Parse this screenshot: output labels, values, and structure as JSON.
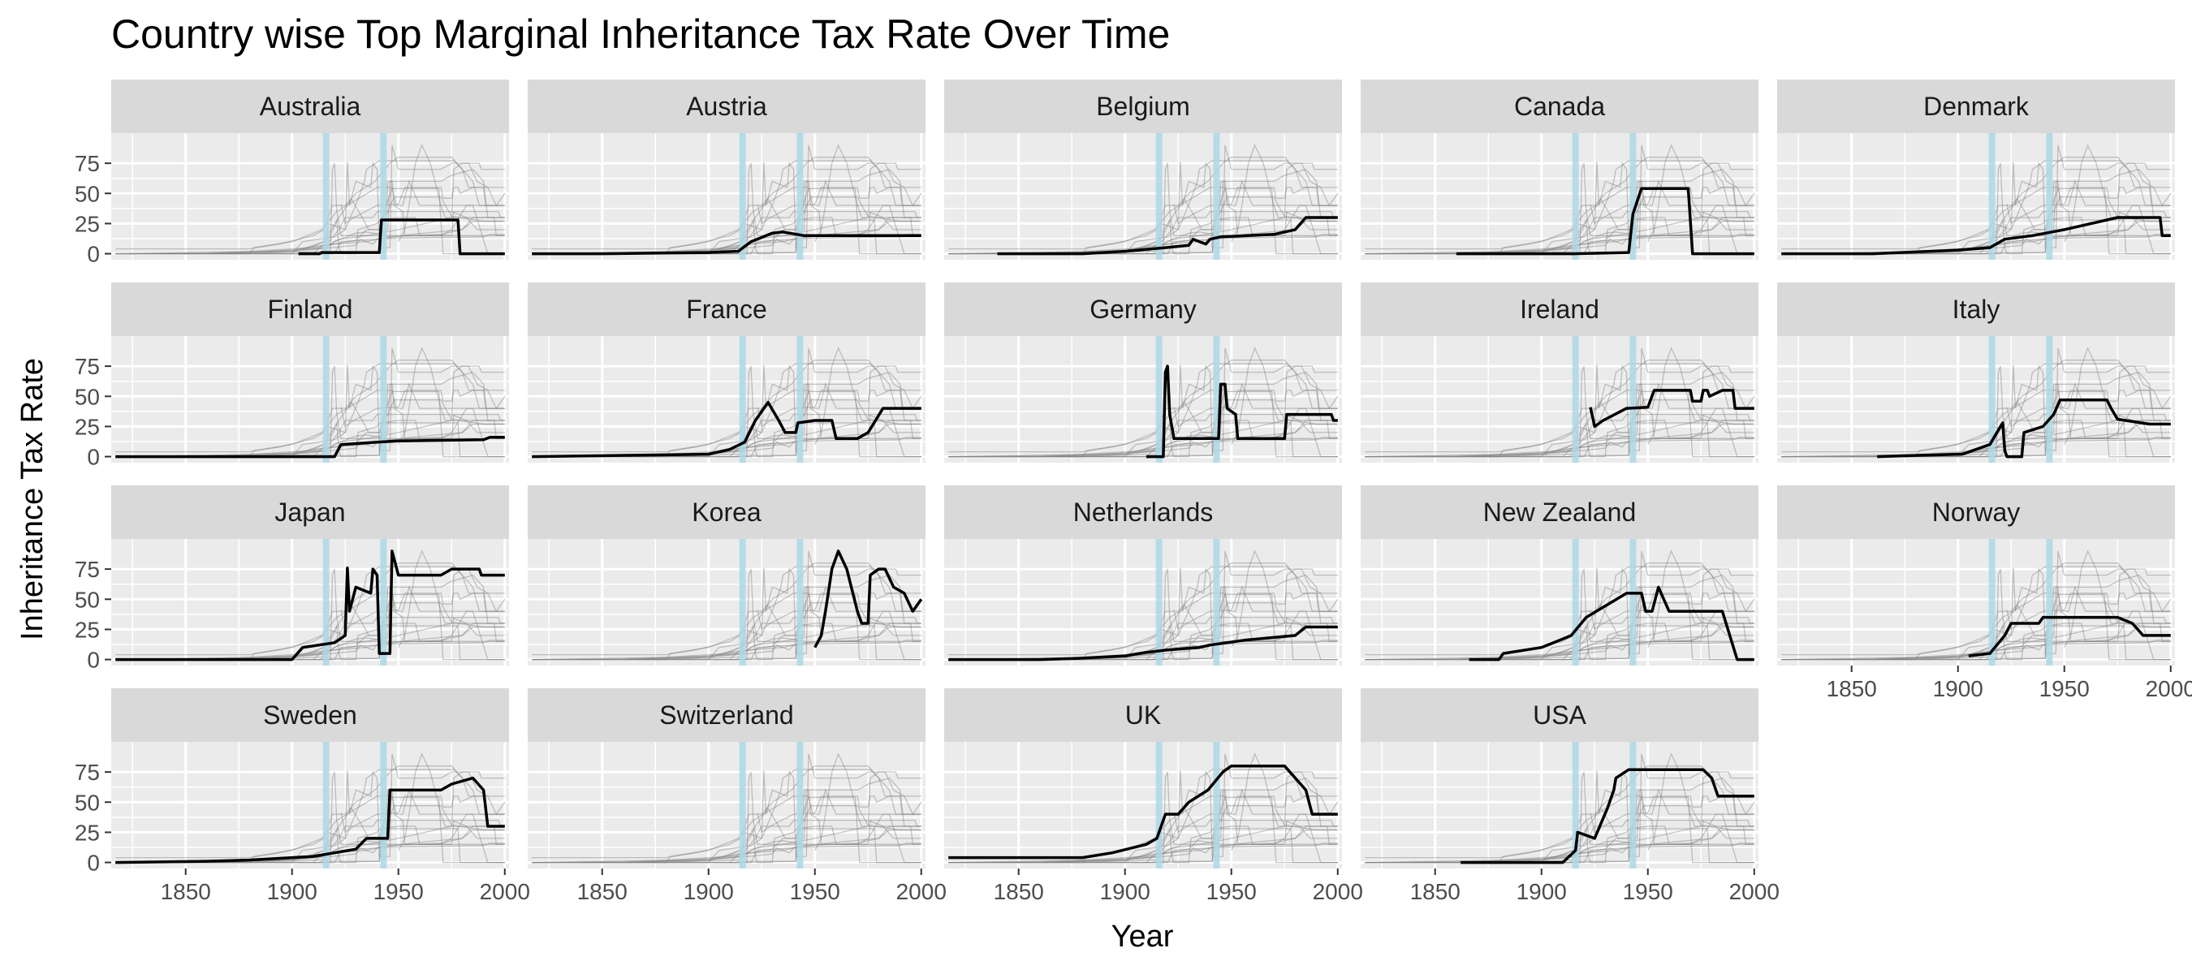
{
  "chart_data": {
    "type": "line",
    "title": "Country wise Top Marginal Inheritance Tax Rate Over Time",
    "xlabel": "Year",
    "ylabel": "Inheritance Tax Rate",
    "xlim": [
      1815,
      2002
    ],
    "ylim": [
      -5,
      100
    ],
    "x_ticks": [
      1850,
      1900,
      1950,
      2000
    ],
    "y_ticks": [
      0,
      25,
      50,
      75
    ],
    "reference_lines_x": [
      1916,
      1943
    ],
    "grid": true,
    "layout": "facet_wrap",
    "panels": [
      {
        "name": "Australia",
        "points": [
          [
            1903,
            0
          ],
          [
            1913,
            0
          ],
          [
            1914,
            1
          ],
          [
            1941,
            1
          ],
          [
            1942,
            28
          ],
          [
            1978,
            28
          ],
          [
            1979,
            0
          ],
          [
            2000,
            0
          ]
        ]
      },
      {
        "name": "Austria",
        "points": [
          [
            1817,
            0
          ],
          [
            1850,
            0
          ],
          [
            1900,
            1
          ],
          [
            1914,
            2
          ],
          [
            1920,
            10
          ],
          [
            1930,
            17
          ],
          [
            1935,
            18
          ],
          [
            1945,
            15
          ],
          [
            2000,
            15
          ]
        ]
      },
      {
        "name": "Belgium",
        "points": [
          [
            1840,
            0
          ],
          [
            1880,
            0
          ],
          [
            1900,
            2
          ],
          [
            1919,
            5
          ],
          [
            1930,
            7
          ],
          [
            1932,
            12
          ],
          [
            1938,
            8
          ],
          [
            1940,
            12
          ],
          [
            1945,
            14
          ],
          [
            1970,
            16
          ],
          [
            1980,
            20
          ],
          [
            1985,
            30
          ],
          [
            2000,
            30
          ]
        ]
      },
      {
        "name": "Canada",
        "points": [
          [
            1860,
            0
          ],
          [
            1900,
            0
          ],
          [
            1915,
            0
          ],
          [
            1941,
            1
          ],
          [
            1943,
            33
          ],
          [
            1947,
            54
          ],
          [
            1969,
            54
          ],
          [
            1971,
            0
          ],
          [
            2000,
            0
          ]
        ]
      },
      {
        "name": "Denmark",
        "points": [
          [
            1817,
            0
          ],
          [
            1860,
            0
          ],
          [
            1900,
            3
          ],
          [
            1915,
            5
          ],
          [
            1922,
            12
          ],
          [
            1935,
            15
          ],
          [
            1950,
            20
          ],
          [
            1975,
            30
          ],
          [
            1995,
            30
          ],
          [
            1996,
            15
          ],
          [
            2000,
            15
          ]
        ]
      },
      {
        "name": "Finland",
        "points": [
          [
            1817,
            0
          ],
          [
            1920,
            0
          ],
          [
            1923,
            10
          ],
          [
            1940,
            12
          ],
          [
            1950,
            13
          ],
          [
            1990,
            14
          ],
          [
            1993,
            16
          ],
          [
            2000,
            16
          ]
        ]
      },
      {
        "name": "France",
        "points": [
          [
            1817,
            0
          ],
          [
            1900,
            2
          ],
          [
            1910,
            6
          ],
          [
            1917,
            12
          ],
          [
            1922,
            30
          ],
          [
            1926,
            40
          ],
          [
            1928,
            45
          ],
          [
            1933,
            30
          ],
          [
            1936,
            20
          ],
          [
            1941,
            20
          ],
          [
            1942,
            28
          ],
          [
            1950,
            30
          ],
          [
            1958,
            30
          ],
          [
            1960,
            15
          ],
          [
            1970,
            15
          ],
          [
            1975,
            20
          ],
          [
            1982,
            40
          ],
          [
            2000,
            40
          ]
        ]
      },
      {
        "name": "Germany",
        "points": [
          [
            1910,
            0
          ],
          [
            1918,
            0
          ],
          [
            1919,
            70
          ],
          [
            1920,
            75
          ],
          [
            1921,
            35
          ],
          [
            1923,
            15
          ],
          [
            1944,
            15
          ],
          [
            1945,
            60
          ],
          [
            1947,
            60
          ],
          [
            1948,
            40
          ],
          [
            1952,
            35
          ],
          [
            1953,
            15
          ],
          [
            1975,
            15
          ],
          [
            1976,
            35
          ],
          [
            1997,
            35
          ],
          [
            1998,
            30
          ],
          [
            2000,
            30
          ]
        ]
      },
      {
        "name": "Ireland",
        "points": [
          [
            1923,
            41
          ],
          [
            1925,
            25
          ],
          [
            1929,
            30
          ],
          [
            1940,
            40
          ],
          [
            1950,
            41
          ],
          [
            1953,
            55
          ],
          [
            1970,
            55
          ],
          [
            1971,
            46
          ],
          [
            1975,
            46
          ],
          [
            1976,
            55
          ],
          [
            1978,
            55
          ],
          [
            1979,
            50
          ],
          [
            1985,
            55
          ],
          [
            1990,
            55
          ],
          [
            1991,
            40
          ],
          [
            2000,
            40
          ]
        ]
      },
      {
        "name": "Italy",
        "points": [
          [
            1862,
            0
          ],
          [
            1880,
            1
          ],
          [
            1902,
            2
          ],
          [
            1915,
            10
          ],
          [
            1920,
            25
          ],
          [
            1921,
            28
          ],
          [
            1922,
            5
          ],
          [
            1923,
            0
          ],
          [
            1930,
            0
          ],
          [
            1931,
            20
          ],
          [
            1940,
            25
          ],
          [
            1945,
            35
          ],
          [
            1948,
            47
          ],
          [
            1970,
            47
          ],
          [
            1972,
            40
          ],
          [
            1975,
            31
          ],
          [
            1990,
            27
          ],
          [
            2000,
            27
          ]
        ]
      },
      {
        "name": "Japan",
        "points": [
          [
            1817,
            0
          ],
          [
            1900,
            0
          ],
          [
            1905,
            10
          ],
          [
            1920,
            14
          ],
          [
            1925,
            20
          ],
          [
            1926,
            76
          ],
          [
            1927,
            40
          ],
          [
            1930,
            60
          ],
          [
            1937,
            55
          ],
          [
            1938,
            75
          ],
          [
            1940,
            70
          ],
          [
            1941,
            5
          ],
          [
            1946,
            5
          ],
          [
            1947,
            90
          ],
          [
            1950,
            70
          ],
          [
            1970,
            70
          ],
          [
            1975,
            75
          ],
          [
            1988,
            75
          ],
          [
            1989,
            70
          ],
          [
            2000,
            70
          ]
        ]
      },
      {
        "name": "Korea",
        "points": [
          [
            1950,
            10
          ],
          [
            1953,
            20
          ],
          [
            1955,
            40
          ],
          [
            1958,
            75
          ],
          [
            1961,
            90
          ],
          [
            1965,
            75
          ],
          [
            1970,
            40
          ],
          [
            1972,
            30
          ],
          [
            1975,
            30
          ],
          [
            1976,
            70
          ],
          [
            1980,
            75
          ],
          [
            1983,
            75
          ],
          [
            1987,
            60
          ],
          [
            1992,
            55
          ],
          [
            1996,
            40
          ],
          [
            1998,
            45
          ],
          [
            2000,
            50
          ]
        ]
      },
      {
        "name": "Netherlands",
        "points": [
          [
            1817,
            0
          ],
          [
            1860,
            0
          ],
          [
            1878,
            1
          ],
          [
            1900,
            3
          ],
          [
            1910,
            6
          ],
          [
            1920,
            8
          ],
          [
            1935,
            10
          ],
          [
            1940,
            12
          ],
          [
            1956,
            16
          ],
          [
            1980,
            20
          ],
          [
            1985,
            27
          ],
          [
            2000,
            27
          ]
        ]
      },
      {
        "name": "New Zealand",
        "points": [
          [
            1866,
            0
          ],
          [
            1880,
            0
          ],
          [
            1882,
            5
          ],
          [
            1900,
            10
          ],
          [
            1910,
            17
          ],
          [
            1914,
            20
          ],
          [
            1921,
            35
          ],
          [
            1940,
            55
          ],
          [
            1947,
            55
          ],
          [
            1949,
            40
          ],
          [
            1952,
            40
          ],
          [
            1955,
            60
          ],
          [
            1960,
            40
          ],
          [
            1985,
            40
          ],
          [
            1992,
            0
          ],
          [
            2000,
            0
          ]
        ]
      },
      {
        "name": "Norway",
        "points": [
          [
            1905,
            3
          ],
          [
            1915,
            5
          ],
          [
            1922,
            20
          ],
          [
            1925,
            30
          ],
          [
            1938,
            30
          ],
          [
            1940,
            35
          ],
          [
            1975,
            35
          ],
          [
            1982,
            30
          ],
          [
            1987,
            20
          ],
          [
            2000,
            20
          ]
        ]
      },
      {
        "name": "Sweden",
        "points": [
          [
            1817,
            0
          ],
          [
            1860,
            1
          ],
          [
            1880,
            2
          ],
          [
            1910,
            5
          ],
          [
            1920,
            8
          ],
          [
            1930,
            11
          ],
          [
            1935,
            20
          ],
          [
            1945,
            20
          ],
          [
            1946,
            60
          ],
          [
            1970,
            60
          ],
          [
            1975,
            65
          ],
          [
            1985,
            70
          ],
          [
            1990,
            60
          ],
          [
            1992,
            30
          ],
          [
            2000,
            30
          ]
        ]
      },
      {
        "name": "Switzerland",
        "points": []
      },
      {
        "name": "UK",
        "points": [
          [
            1817,
            4
          ],
          [
            1880,
            4
          ],
          [
            1894,
            8
          ],
          [
            1910,
            15
          ],
          [
            1915,
            20
          ],
          [
            1919,
            40
          ],
          [
            1925,
            40
          ],
          [
            1930,
            50
          ],
          [
            1939,
            60
          ],
          [
            1946,
            75
          ],
          [
            1950,
            80
          ],
          [
            1975,
            80
          ],
          [
            1985,
            60
          ],
          [
            1988,
            40
          ],
          [
            2000,
            40
          ]
        ]
      },
      {
        "name": "USA",
        "points": [
          [
            1862,
            0
          ],
          [
            1910,
            0
          ],
          [
            1916,
            10
          ],
          [
            1917,
            25
          ],
          [
            1925,
            20
          ],
          [
            1931,
            45
          ],
          [
            1934,
            60
          ],
          [
            1935,
            70
          ],
          [
            1941,
            77
          ],
          [
            1976,
            77
          ],
          [
            1980,
            70
          ],
          [
            1983,
            55
          ],
          [
            2000,
            55
          ]
        ]
      }
    ]
  },
  "colors": {
    "panel_background": "#ebebeb",
    "strip_background": "#d9d9d9",
    "grid": "#ffffff",
    "reference_line": "#add8e6",
    "highlight_line": "#000000",
    "background_lines": "#808080"
  }
}
